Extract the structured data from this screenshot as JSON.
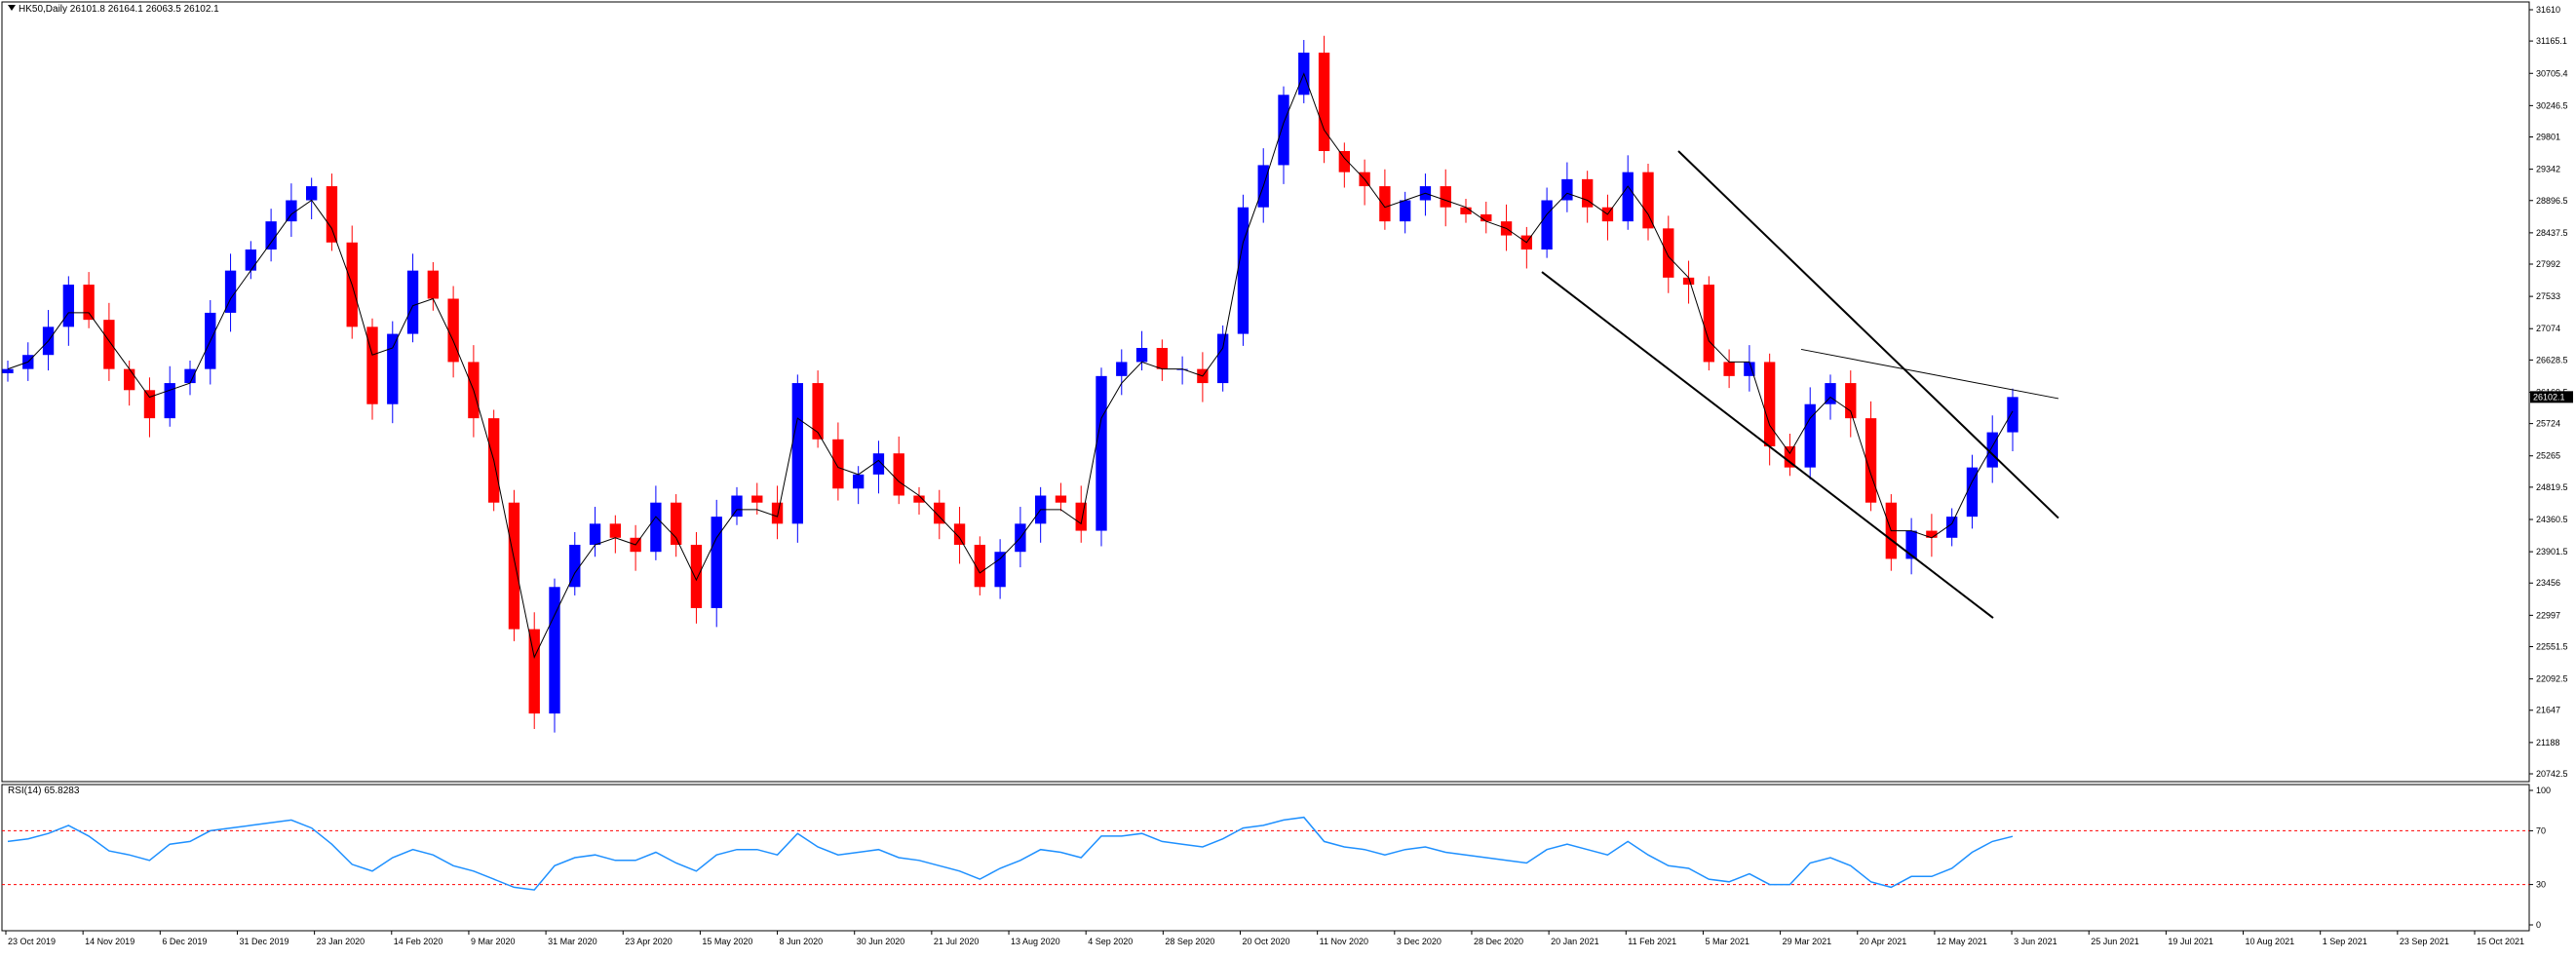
{
  "header": {
    "symbol_line": "HK50,Daily  26101.8 26164.1 26063.5 26102.1"
  },
  "rsi_panel": {
    "label": "RSI(14) 65.8283"
  },
  "colors": {
    "bull": "#0000ff",
    "bear": "#ff0000",
    "ma_line": "#000000",
    "rsi_line": "#1e90ff",
    "rsi_levels": "#ff0000",
    "trendlines": "#000000",
    "background": "#ffffff",
    "price_tag_bg": "#000000",
    "price_tag_text": "#ffffff"
  },
  "chart_data": [
    {
      "type": "line",
      "name": "price",
      "ylim": [
        20742.5,
        31610
      ],
      "y_ticks": [
        "31610",
        "31165.1",
        "30705.4",
        "30246.5",
        "29801",
        "29342",
        "28896.5",
        "28437.5",
        "27992",
        "27533",
        "27074",
        "26628.5",
        "26169.5",
        "25724",
        "25265",
        "24819.5",
        "24360.5",
        "23901.5",
        "23456",
        "22997",
        "22551.5",
        "22092.5",
        "21647",
        "21188",
        "20742.5"
      ],
      "current_price": "26102.1",
      "x_ticks": [
        "23 Oct 2019",
        "14 Nov 2019",
        "6 Dec 2019",
        "31 Dec 2019",
        "23 Jan 2020",
        "14 Feb 2020",
        "9 Mar 2020",
        "31 Mar 2020",
        "23 Apr 2020",
        "15 May 2020",
        "8 Jun 2020",
        "30 Jun 2020",
        "21 Jul 2020",
        "13 Aug 2020",
        "4 Sep 2020",
        "28 Sep 2020",
        "20 Oct 2020",
        "11 Nov 2020",
        "3 Dec 2020",
        "28 Dec 2020",
        "20 Jan 2021",
        "11 Feb 2021",
        "5 Mar 2021",
        "29 Mar 2021",
        "20 Apr 2021",
        "12 May 2021",
        "3 Jun 2021",
        "25 Jun 2021",
        "19 Jul 2021",
        "10 Aug 2021",
        "1 Sep 2021",
        "23 Sep 2021",
        "15 Oct 2021"
      ],
      "close": [
        26500,
        26700,
        27100,
        27700,
        27200,
        26500,
        26200,
        25800,
        26300,
        26500,
        27300,
        27900,
        28200,
        28600,
        28900,
        29100,
        28300,
        27100,
        26000,
        27000,
        27900,
        27500,
        26600,
        25800,
        24600,
        22800,
        21600,
        23400,
        24000,
        24300,
        24100,
        23900,
        24600,
        24000,
        23100,
        24400,
        24700,
        24600,
        24300,
        26300,
        25500,
        24800,
        25000,
        25300,
        24700,
        24600,
        24300,
        24000,
        23400,
        23900,
        24300,
        24700,
        24600,
        24200,
        26400,
        26600,
        26800,
        26500,
        26500,
        26300,
        27000,
        28800,
        29400,
        30400,
        31000,
        29600,
        29300,
        29100,
        28600,
        28900,
        29100,
        28800,
        28700,
        28600,
        28400,
        28200,
        28900,
        29200,
        28800,
        28600,
        29300,
        28500,
        27800,
        27700,
        26600,
        26400,
        26600,
        25400,
        25100,
        26000,
        26300,
        25800,
        24600,
        23800,
        24200,
        24100,
        24400,
        25100,
        25600,
        26102
      ],
      "ma": [
        26500,
        26600,
        26900,
        27300,
        27300,
        26900,
        26500,
        26100,
        26200,
        26300,
        26900,
        27500,
        27900,
        28300,
        28700,
        28900,
        28500,
        27700,
        26700,
        26800,
        27400,
        27500,
        26900,
        26200,
        25200,
        23800,
        22400,
        23000,
        23600,
        24000,
        24100,
        24000,
        24400,
        24100,
        23500,
        24100,
        24500,
        24500,
        24400,
        25800,
        25600,
        25100,
        25000,
        25200,
        24900,
        24700,
        24400,
        24100,
        23600,
        23800,
        24100,
        24500,
        24500,
        24300,
        25800,
        26300,
        26600,
        26500,
        26500,
        26400,
        26800,
        28300,
        29100,
        30000,
        30700,
        29900,
        29500,
        29200,
        28800,
        28900,
        29000,
        28900,
        28800,
        28600,
        28500,
        28300,
        28700,
        29000,
        28900,
        28700,
        29100,
        28700,
        28100,
        27800,
        26900,
        26600,
        26600,
        25700,
        25300,
        25800,
        26100,
        25900,
        25000,
        24200,
        24200,
        24100,
        24300,
        24900,
        25400,
        25900
      ]
    },
    {
      "type": "line",
      "name": "RSI(14)",
      "ylim": [
        0,
        100
      ],
      "y_ticks": [
        "100",
        "70",
        "30",
        "0"
      ],
      "levels": [
        70,
        30
      ],
      "values": [
        62,
        64,
        68,
        74,
        66,
        55,
        52,
        48,
        60,
        62,
        70,
        72,
        74,
        76,
        78,
        72,
        60,
        45,
        40,
        50,
        56,
        52,
        44,
        40,
        34,
        28,
        26,
        44,
        50,
        52,
        48,
        48,
        54,
        46,
        40,
        52,
        56,
        56,
        52,
        68,
        58,
        52,
        54,
        56,
        50,
        48,
        44,
        40,
        34,
        42,
        48,
        56,
        54,
        50,
        66,
        66,
        68,
        62,
        60,
        58,
        64,
        72,
        74,
        78,
        80,
        62,
        58,
        56,
        52,
        56,
        58,
        54,
        52,
        50,
        48,
        46,
        56,
        60,
        56,
        52,
        62,
        52,
        44,
        42,
        34,
        32,
        38,
        30,
        30,
        46,
        50,
        44,
        32,
        28,
        36,
        36,
        42,
        54,
        62,
        65.8283
      ]
    }
  ]
}
